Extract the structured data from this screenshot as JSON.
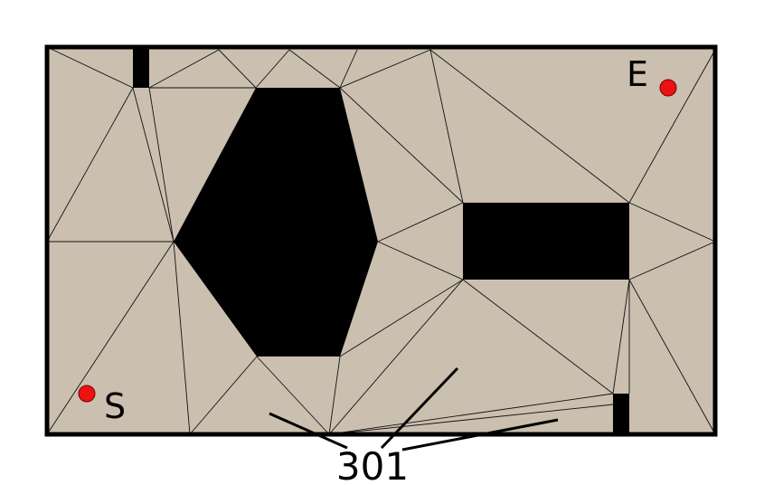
{
  "diagram": {
    "reference_numeral": "301",
    "start": {
      "label": "S"
    },
    "end": {
      "label": "E"
    }
  },
  "colors": {
    "free_space": "#cbbfb0",
    "obstacle": "#000000",
    "mesh_edge": "#111111",
    "waypoint": "#ee1111",
    "border": "#000000"
  }
}
